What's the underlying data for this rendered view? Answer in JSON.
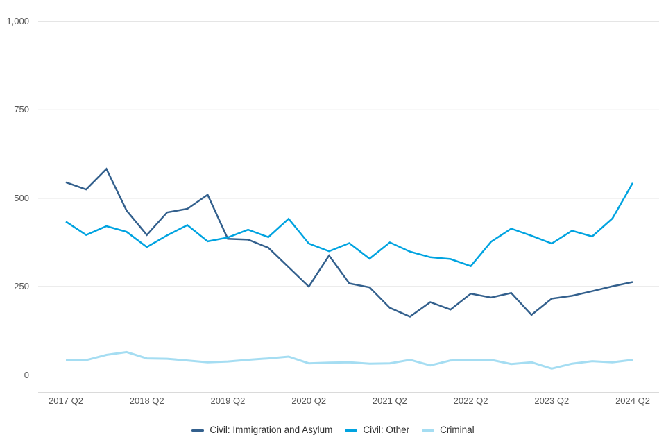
{
  "chart_data": {
    "type": "line",
    "title": "",
    "xlabel": "",
    "ylabel": "",
    "ylim": [
      0,
      1000
    ],
    "yticks": [
      0,
      250,
      500,
      750,
      1000
    ],
    "ytick_labels": [
      "0",
      "250",
      "500",
      "750",
      "1,000"
    ],
    "grid": true,
    "legend_position": "bottom",
    "x": [
      "2017 Q2",
      "2017 Q3",
      "2017 Q4",
      "2018 Q1",
      "2018 Q2",
      "2018 Q3",
      "2018 Q4",
      "2019 Q1",
      "2019 Q2",
      "2019 Q3",
      "2019 Q4",
      "2020 Q1",
      "2020 Q2",
      "2020 Q3",
      "2020 Q4",
      "2021 Q1",
      "2021 Q2",
      "2021 Q3",
      "2021 Q4",
      "2022 Q1",
      "2022 Q2",
      "2022 Q3",
      "2022 Q4",
      "2023 Q1",
      "2023 Q2",
      "2023 Q3",
      "2023 Q4",
      "2024 Q1",
      "2024 Q2"
    ],
    "x_tick_labels": [
      "2017 Q2",
      "2018 Q2",
      "2019 Q2",
      "2020 Q2",
      "2021 Q2",
      "2022 Q2",
      "2023 Q2",
      "2024 Q2"
    ],
    "x_tick_indices": [
      0,
      4,
      8,
      12,
      16,
      20,
      24,
      28
    ],
    "series": [
      {
        "name": "Civil: Immigration and Asylum",
        "color": "#33608D",
        "stroke_width": 2.5,
        "values": [
          545,
          525,
          583,
          465,
          396,
          460,
          470,
          510,
          385,
          383,
          360,
          305,
          250,
          338,
          259,
          248,
          190,
          165,
          206,
          185,
          230,
          219,
          232,
          170,
          216,
          224,
          237,
          251,
          263
        ]
      },
      {
        "name": "Civil: Other",
        "color": "#00A3E0",
        "stroke_width": 2.5,
        "values": [
          434,
          396,
          421,
          405,
          362,
          395,
          424,
          378,
          389,
          411,
          390,
          442,
          372,
          350,
          373,
          329,
          375,
          349,
          333,
          328,
          308,
          377,
          414,
          394,
          372,
          408,
          392,
          443,
          543
        ]
      },
      {
        "name": "Criminal",
        "color": "#A5DDF2",
        "stroke_width": 3,
        "values": [
          43,
          42,
          57,
          65,
          47,
          46,
          41,
          36,
          38,
          43,
          47,
          52,
          33,
          35,
          36,
          32,
          33,
          43,
          27,
          41,
          43,
          43,
          31,
          36,
          18,
          32,
          39,
          36,
          43
        ]
      }
    ]
  },
  "colors": {
    "gridline": "#CBCBCB",
    "axis_line": "#B5B5B5",
    "tick_text": "#565656",
    "legend_text": "#303030"
  }
}
